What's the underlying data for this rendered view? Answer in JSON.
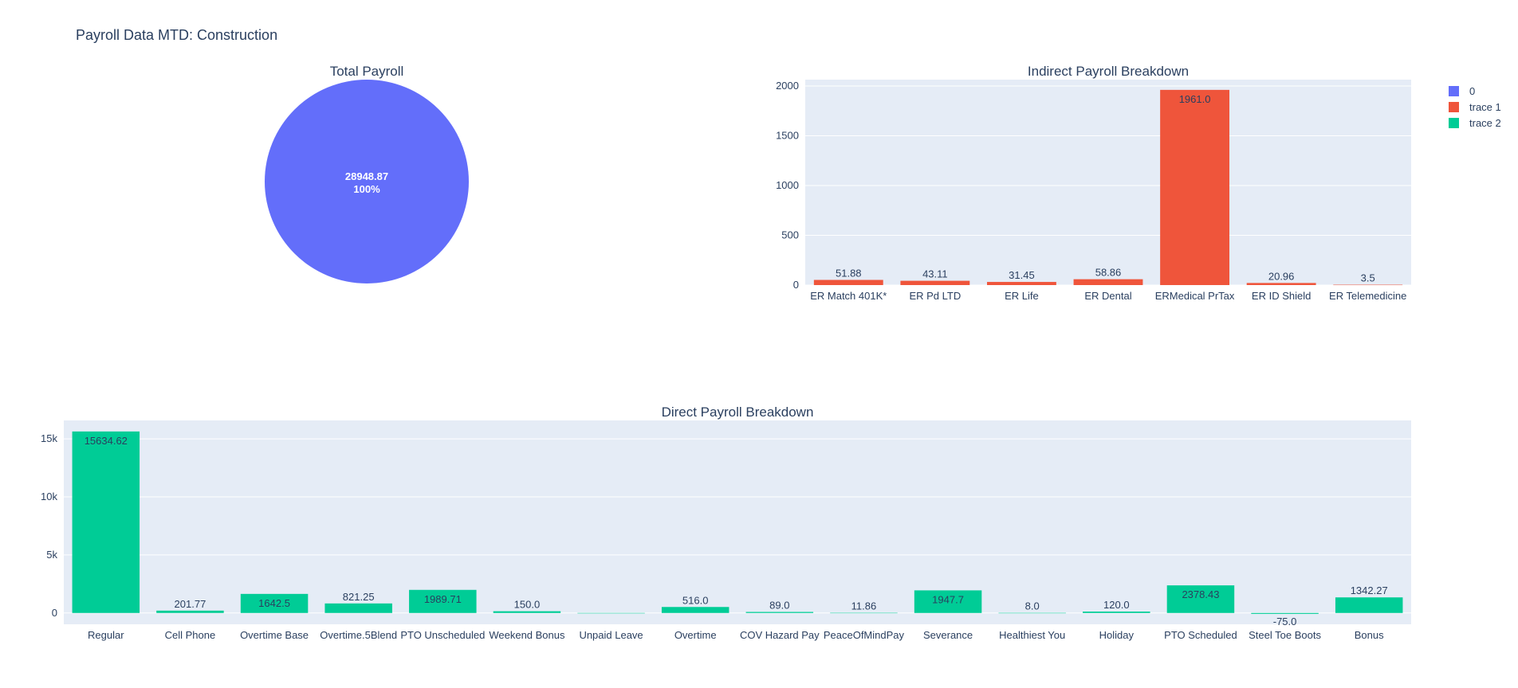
{
  "title": "Payroll Data MTD: Construction",
  "colors": {
    "pie": "#636efa",
    "indirect": "#ef553b",
    "direct": "#00cc96",
    "plot_bg": "#e5ecf6",
    "text": "#2a3f5f"
  },
  "legend": {
    "placement": "top-right",
    "items": [
      {
        "name": "0",
        "color": "#636efa"
      },
      {
        "name": "trace 1",
        "color": "#ef553b"
      },
      {
        "name": "trace 2",
        "color": "#00cc96"
      }
    ]
  },
  "chart_data": [
    {
      "type": "pie",
      "title": "Total Payroll",
      "labels": [
        "0"
      ],
      "values": [
        28948.87
      ],
      "value_label": "28948.87",
      "percent_label": "100%"
    },
    {
      "type": "bar",
      "title": "Indirect Payroll Breakdown",
      "categories": [
        "ER Match 401K*",
        "ER Pd LTD",
        "ER Life",
        "ER Dental",
        "ERMedical PrTax",
        "ER ID Shield",
        "ER Telemedicine"
      ],
      "values": [
        51.88,
        43.11,
        31.45,
        58.86,
        1961.0,
        20.96,
        3.5
      ],
      "labels": [
        "51.88",
        "43.11",
        "31.45",
        "58.86",
        "1961.0",
        "20.96",
        "3.5"
      ],
      "yticks": [
        0,
        500,
        1000,
        1500,
        2000
      ],
      "ytick_labels": [
        "0",
        "500",
        "1000",
        "1500",
        "2000"
      ],
      "ylim": [
        0,
        2064
      ],
      "grid": true
    },
    {
      "type": "bar",
      "title": "Direct Payroll Breakdown",
      "categories": [
        "Regular",
        "Cell Phone",
        "Overtime Base",
        "Overtime.5Blend",
        "PTO Unscheduled",
        "Weekend Bonus",
        "Unpaid Leave",
        "Overtime",
        "COV Hazard Pay",
        "PeaceOfMindPay",
        "Severance",
        "Healthiest You",
        "Holiday",
        "PTO Scheduled",
        "Steel Toe Boots",
        "Bonus"
      ],
      "values": [
        15634.62,
        201.77,
        1642.5,
        821.25,
        1989.71,
        150.0,
        0,
        516.0,
        89.0,
        11.86,
        1947.7,
        8.0,
        120.0,
        2378.43,
        -75.0,
        1342.27
      ],
      "labels": [
        "15634.62",
        "201.77",
        "1642.5",
        "821.25",
        "1989.71",
        "150.0",
        "",
        "516.0",
        "89.0",
        "11.86",
        "1947.7",
        "8.0",
        "120.0",
        "2378.43",
        "-75.0",
        "1342.27"
      ],
      "yticks": [
        0,
        5000,
        10000,
        15000
      ],
      "ytick_labels": [
        "0",
        "5k",
        "10k",
        "15k"
      ],
      "ylim": [
        -975,
        16584
      ],
      "grid": true
    }
  ]
}
